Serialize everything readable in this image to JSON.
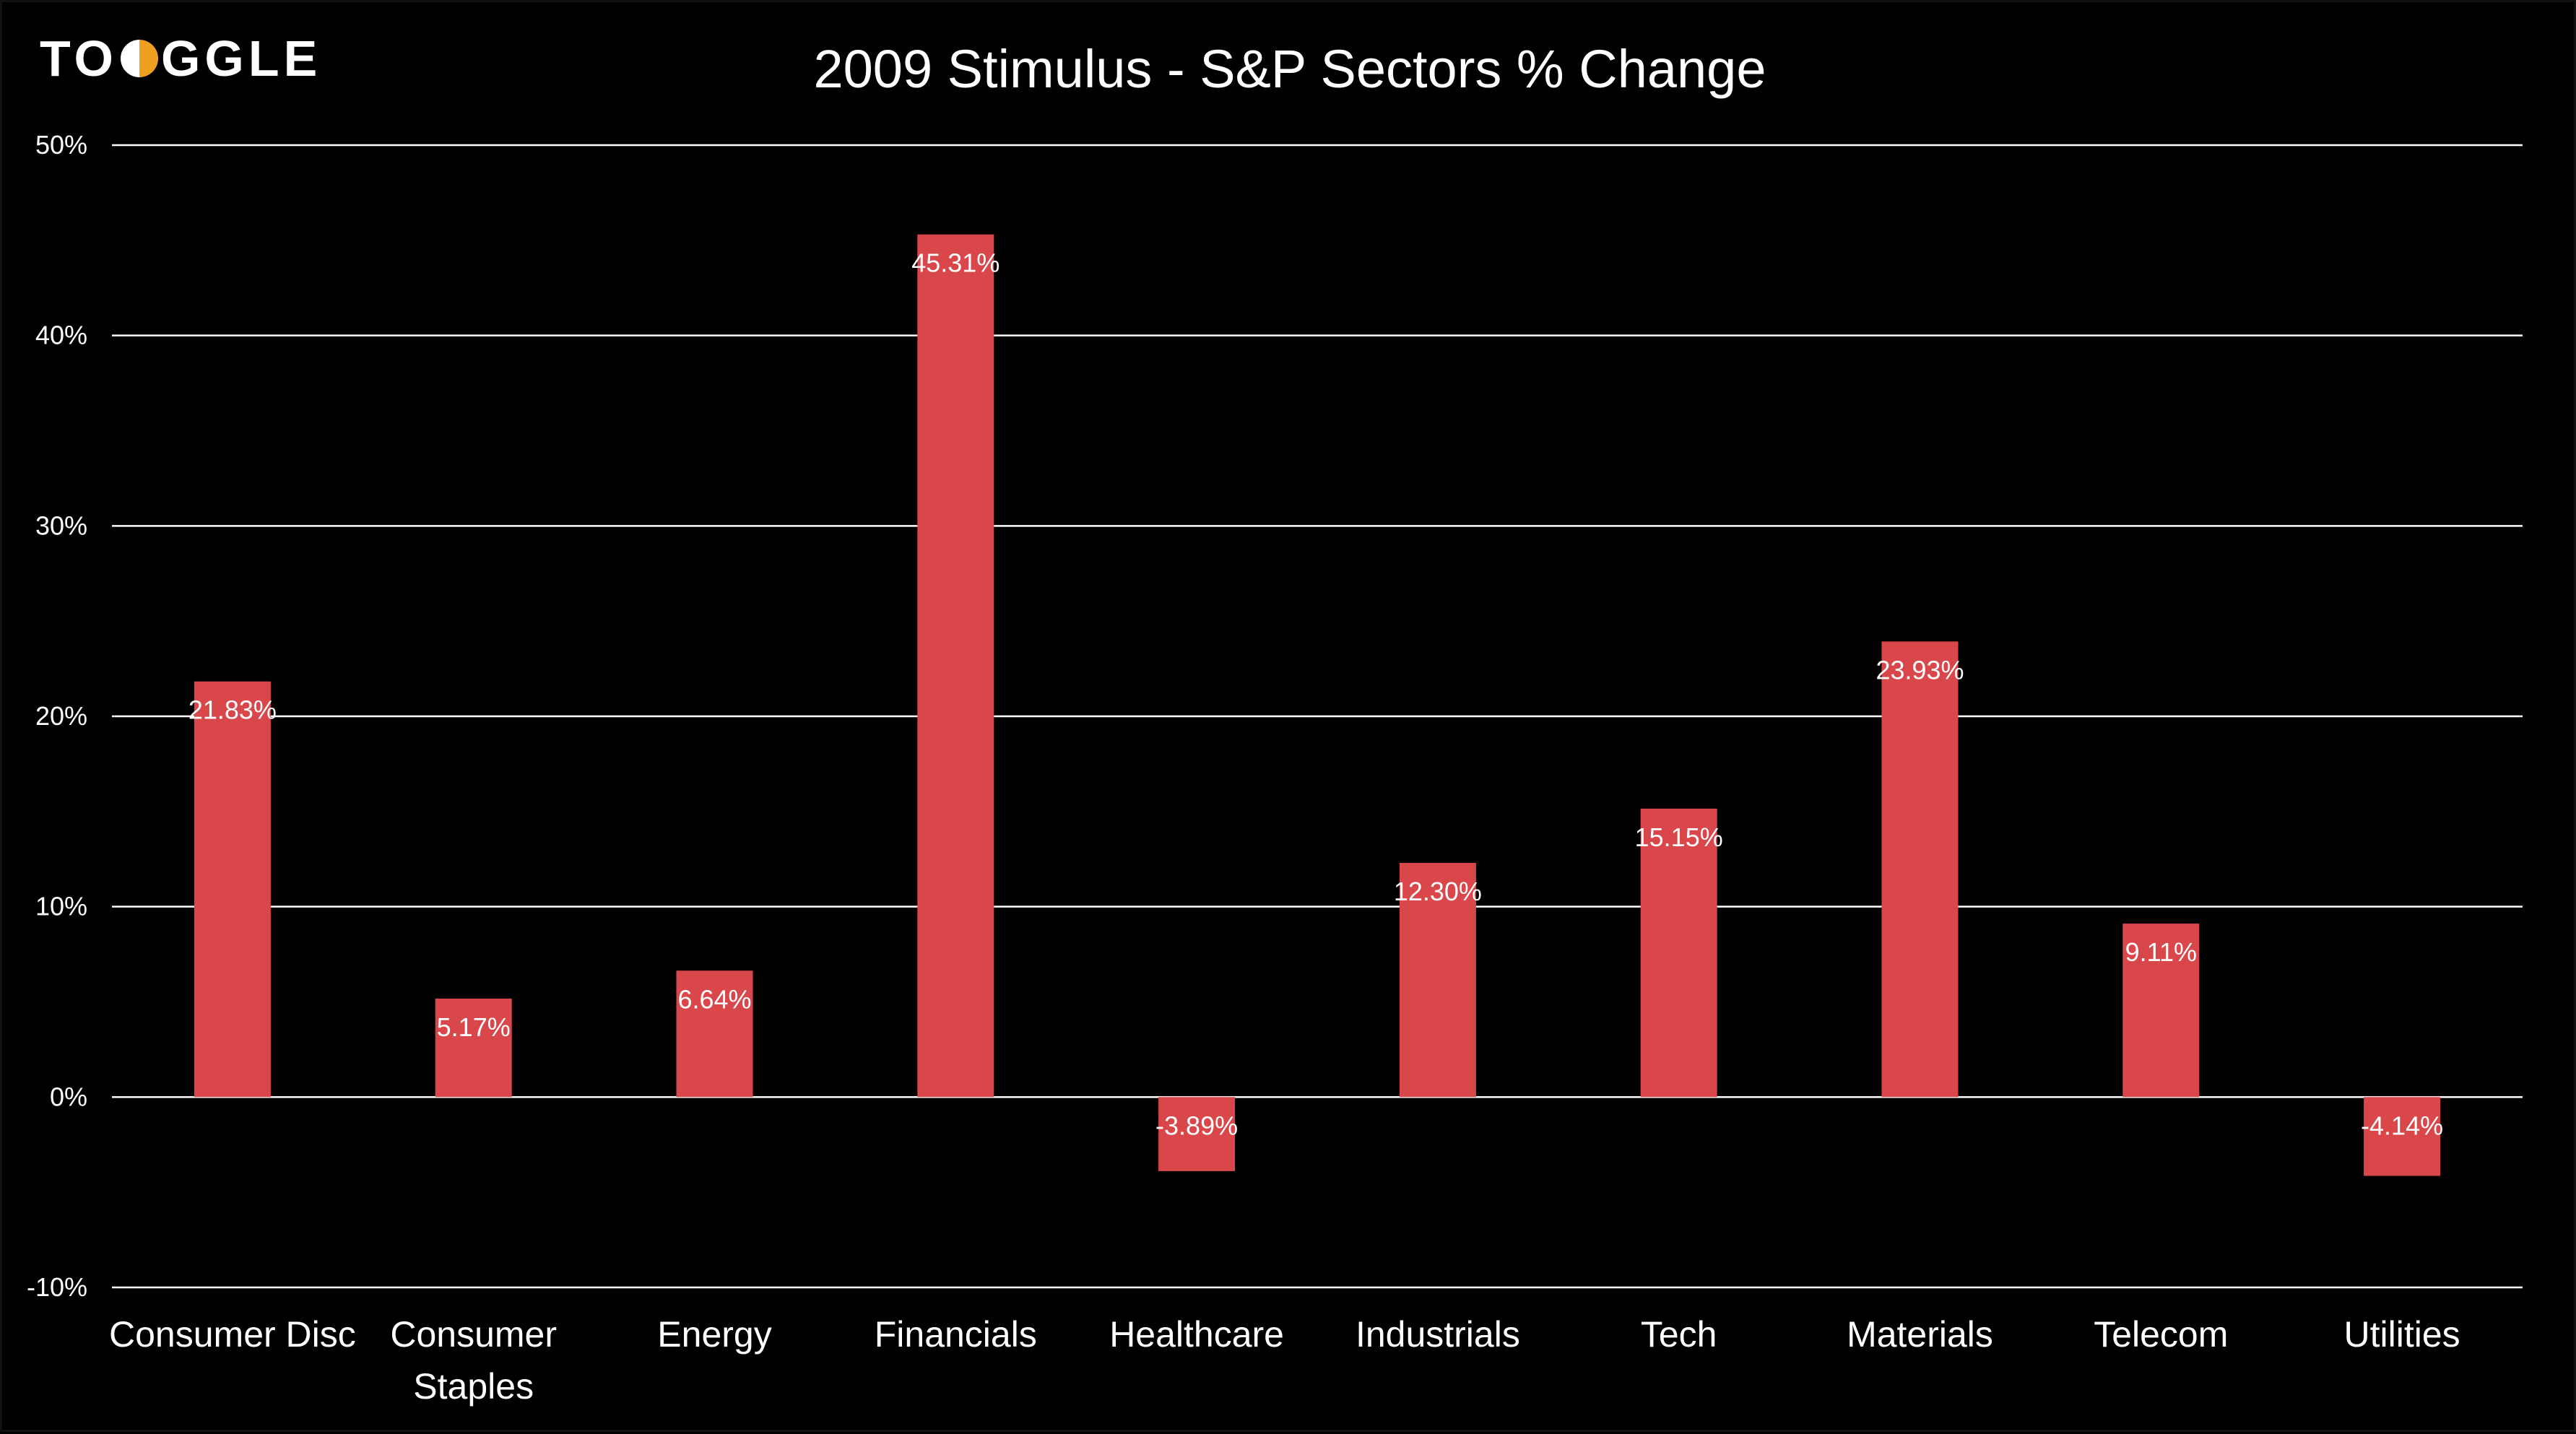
{
  "brand": {
    "logo_text_a": "TO",
    "logo_text_b": "GGLE",
    "accent": "#f0a020"
  },
  "chart_data": {
    "type": "bar",
    "title": "2009 Stimulus - S&P Sectors % Change",
    "xlabel": "",
    "ylabel": "",
    "categories": [
      "Consumer Disc",
      "Consumer Staples",
      "Energy",
      "Financials",
      "Healthcare",
      "Industrials",
      "Tech",
      "Materials",
      "Telecom",
      "Utilities"
    ],
    "values": [
      21.83,
      5.17,
      6.64,
      45.31,
      -3.89,
      12.3,
      15.15,
      23.93,
      9.11,
      -4.14
    ],
    "data_labels": [
      "21.83%",
      "5.17%",
      "6.64%",
      "45.31%",
      "-3.89%",
      "12.30%",
      "15.15%",
      "23.93%",
      "9.11%",
      "-4.14%"
    ],
    "ylim": [
      -10,
      50
    ],
    "yticks": [
      -10,
      0,
      10,
      20,
      30,
      40,
      50
    ],
    "ytick_labels": [
      "-10%",
      "0%",
      "10%",
      "20%",
      "30%",
      "40%",
      "50%"
    ],
    "grid": true,
    "legend": "none",
    "colors": {
      "bar": "#d9474b",
      "background": "#000000",
      "text": "#ffffff",
      "grid": "#ffffff"
    }
  }
}
